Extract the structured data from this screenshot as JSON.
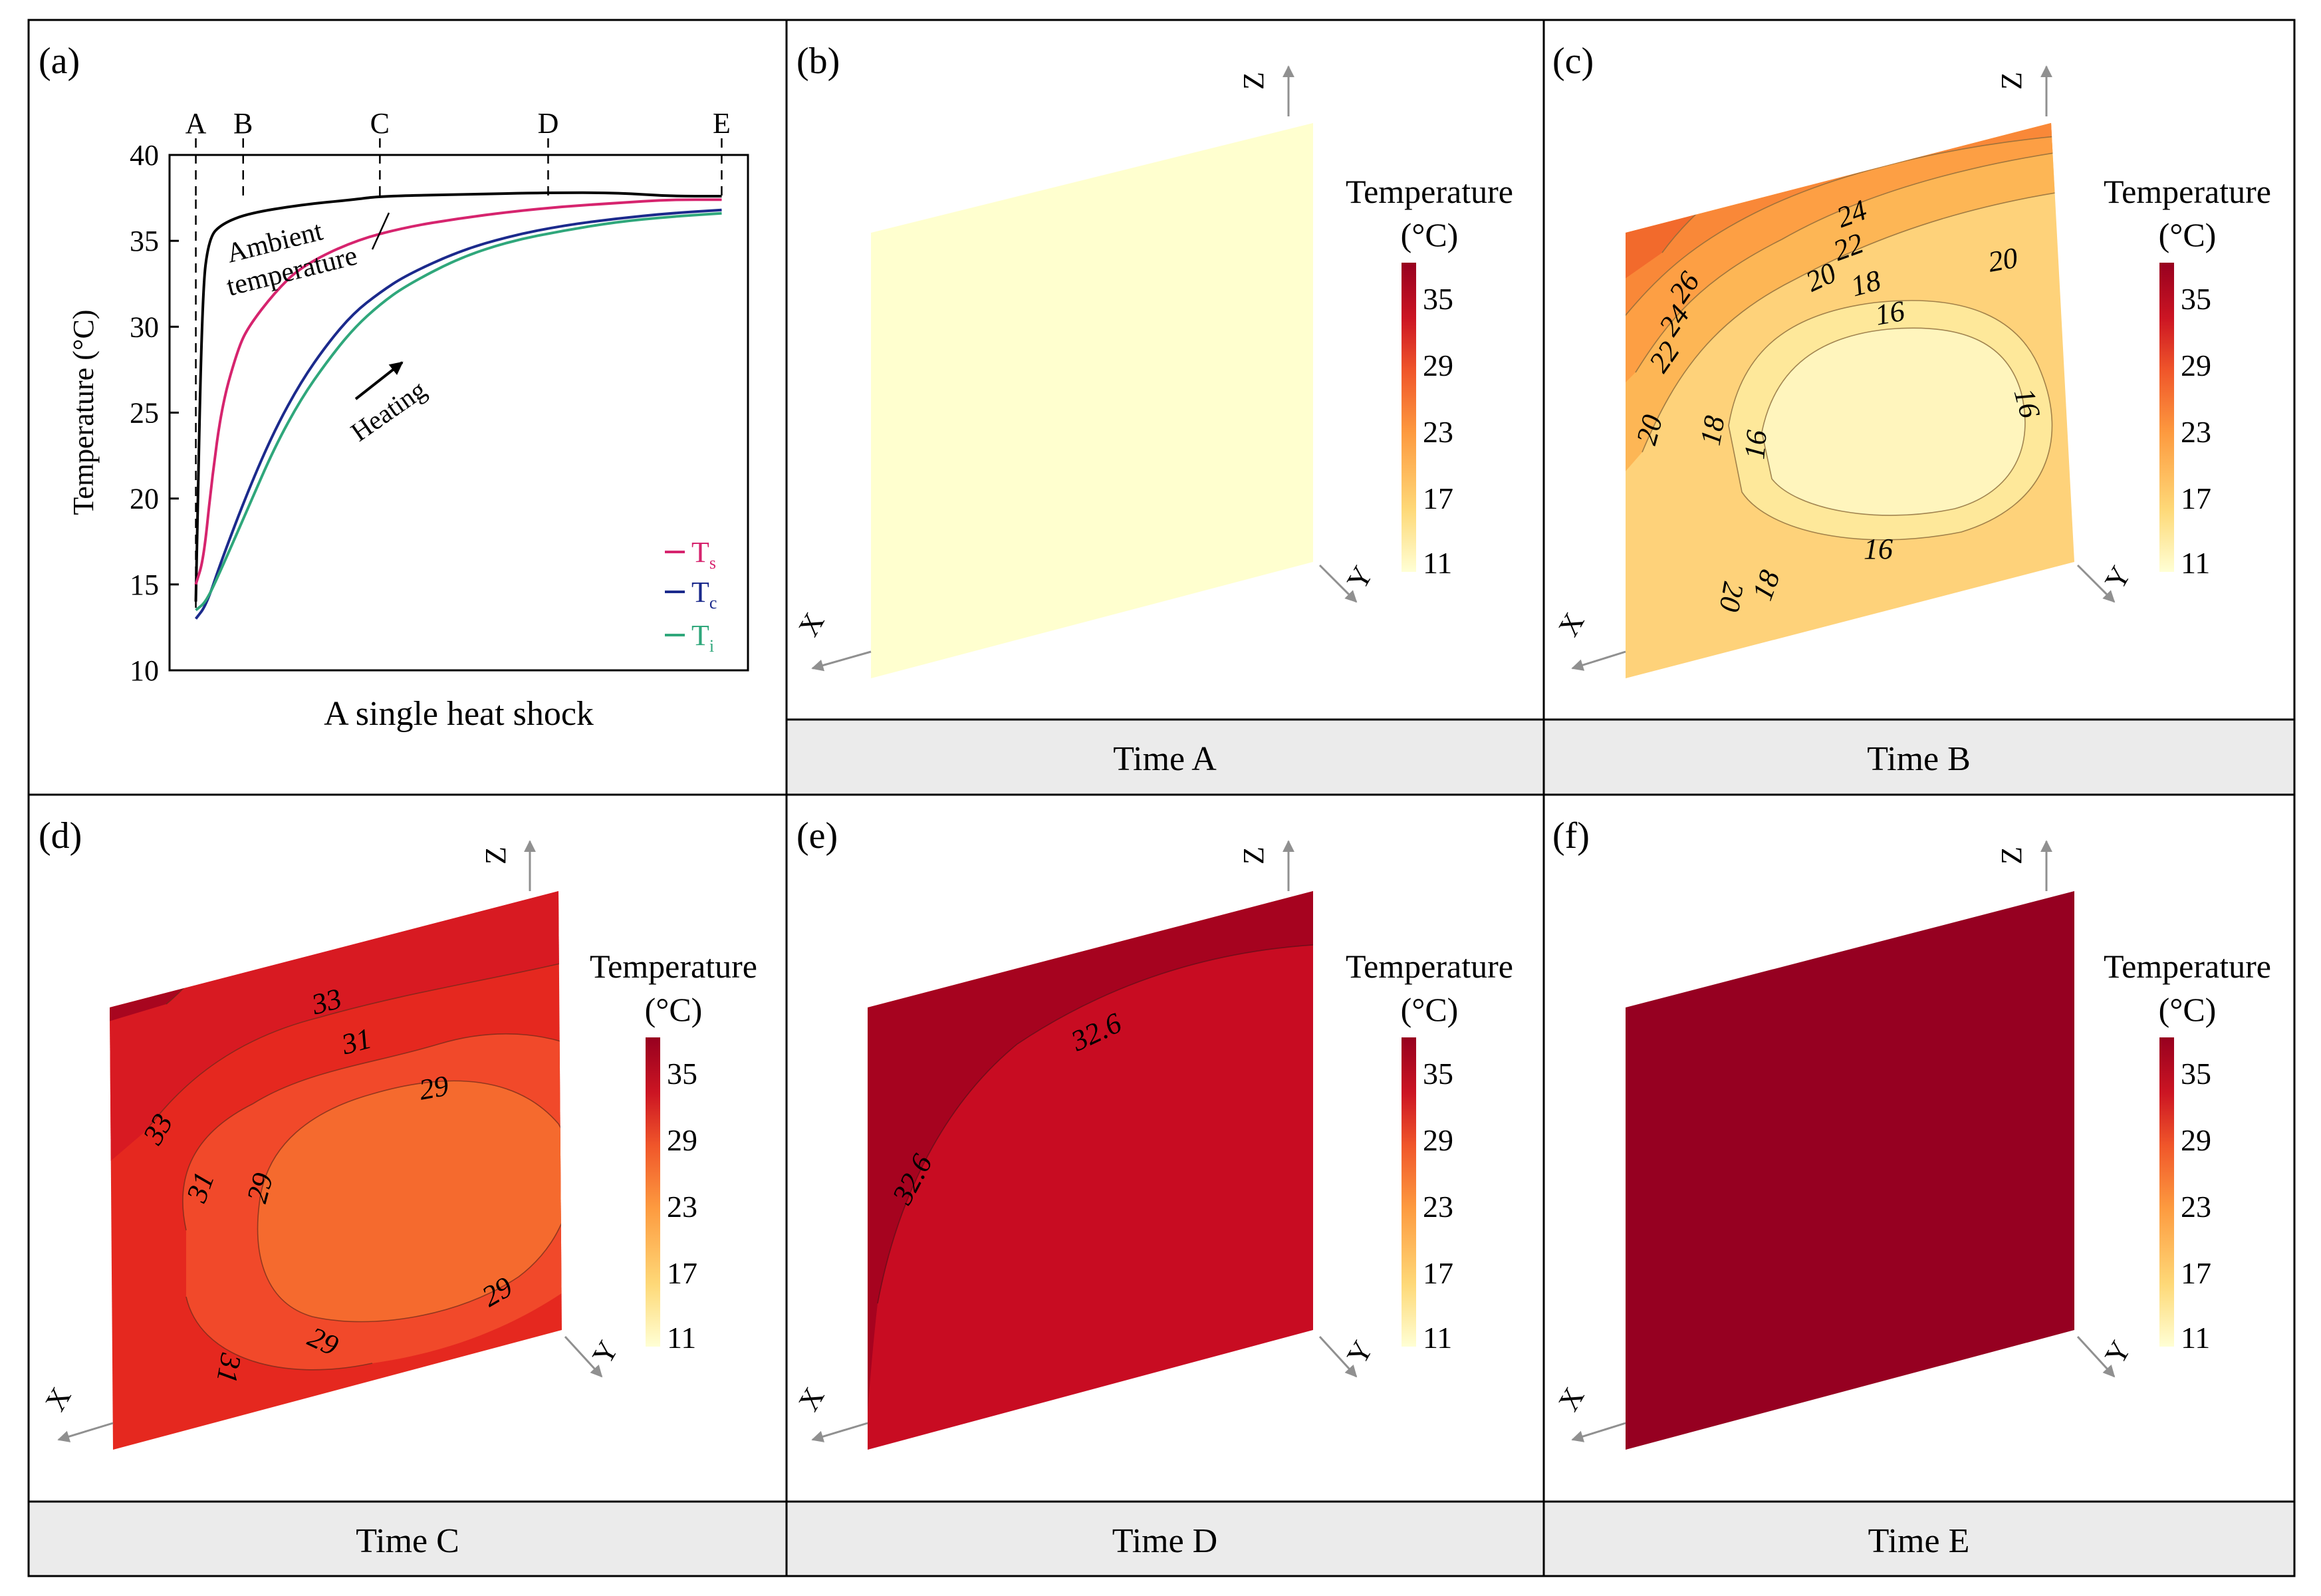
{
  "colors": {
    "ts": "#d6246e",
    "tc": "#1b2a8c",
    "ti": "#2fa77b",
    "ambient": "#000000",
    "caption_bg": "#ebebeb",
    "cmap": [
      "#ffffd4",
      "#fed978",
      "#fd9a3f",
      "#f0562a",
      "#cc1523",
      "#97001f"
    ]
  },
  "panel_a": {
    "label": "(a)",
    "time_marks": [
      "A",
      "B",
      "C",
      "D",
      "E"
    ],
    "ylabel": "Temperature (°C)",
    "caption": "A single heat shock",
    "ambient_label_1": "Ambient",
    "ambient_label_2": "temperature",
    "heating_label": "Heating",
    "legend": [
      {
        "name": "T",
        "sub": "s",
        "color_key": "ts"
      },
      {
        "name": "T",
        "sub": "c",
        "color_key": "tc"
      },
      {
        "name": "T",
        "sub": "i",
        "color_key": "ti"
      }
    ]
  },
  "chart_data": [
    {
      "type": "line",
      "title": "A single heat shock",
      "xlabel": "A single heat shock",
      "ylabel": "Temperature (°C)",
      "ylim": [
        10,
        40
      ],
      "yticks": [
        10,
        15,
        20,
        25,
        30,
        35,
        40
      ],
      "xlim": [
        -0.05,
        1.05
      ],
      "time_markers": [
        {
          "label": "A",
          "x": 0.0
        },
        {
          "label": "B",
          "x": 0.09
        },
        {
          "label": "C",
          "x": 0.35
        },
        {
          "label": "D",
          "x": 0.67
        },
        {
          "label": "E",
          "x": 1.0
        }
      ],
      "series": [
        {
          "name": "Ambient temperature",
          "color_key": "ambient",
          "x": [
            0,
            0.012,
            0.025,
            0.05,
            0.1,
            0.2,
            0.3,
            0.35,
            0.5,
            0.67,
            0.8,
            0.9,
            1.0
          ],
          "y": [
            14.0,
            32.0,
            35.2,
            36.0,
            36.6,
            37.1,
            37.4,
            37.6,
            37.7,
            37.8,
            37.8,
            37.6,
            37.6
          ]
        },
        {
          "name": "Ts",
          "color_key": "ts",
          "x": [
            0,
            0.015,
            0.03,
            0.05,
            0.08,
            0.1,
            0.15,
            0.2,
            0.3,
            0.4,
            0.5,
            0.6,
            0.7,
            0.8,
            0.9,
            1.0
          ],
          "y": [
            15.0,
            16.5,
            21.0,
            25.5,
            28.7,
            30.0,
            32.0,
            33.5,
            35.0,
            35.8,
            36.3,
            36.7,
            37.0,
            37.2,
            37.4,
            37.4
          ]
        },
        {
          "name": "Tc",
          "color_key": "tc",
          "x": [
            0,
            0.02,
            0.05,
            0.1,
            0.15,
            0.2,
            0.25,
            0.3,
            0.35,
            0.4,
            0.5,
            0.6,
            0.7,
            0.8,
            0.9,
            1.0
          ],
          "y": [
            13.0,
            13.8,
            16.5,
            20.5,
            24.0,
            26.8,
            29.0,
            30.8,
            32.0,
            33.0,
            34.4,
            35.3,
            35.9,
            36.3,
            36.6,
            36.8
          ]
        },
        {
          "name": "Ti",
          "color_key": "ti",
          "x": [
            0,
            0.02,
            0.05,
            0.1,
            0.15,
            0.2,
            0.25,
            0.3,
            0.35,
            0.4,
            0.5,
            0.6,
            0.7,
            0.8,
            0.9,
            1.0
          ],
          "y": [
            13.5,
            14.0,
            16.0,
            19.5,
            23.0,
            25.8,
            28.0,
            29.9,
            31.3,
            32.4,
            34.0,
            35.0,
            35.6,
            36.1,
            36.4,
            36.6
          ]
        }
      ]
    },
    {
      "type": "heatmap",
      "panel": "(b)",
      "caption": "Time A",
      "uniform_value": 11.5,
      "contours": []
    },
    {
      "type": "heatmap",
      "panel": "(c)",
      "caption": "Time B",
      "value_range": [
        15,
        28
      ],
      "contour_labels": [
        "26",
        "24",
        "22",
        "20",
        "18",
        "16",
        "24",
        "22",
        "20",
        "18",
        "16",
        "20",
        "16",
        "16",
        "18",
        "20"
      ]
    },
    {
      "type": "heatmap",
      "panel": "(d)",
      "caption": "Time C",
      "value_range": [
        27,
        35
      ],
      "contour_labels": [
        "33",
        "31",
        "29",
        "33",
        "31",
        "29",
        "29",
        "29",
        "31"
      ]
    },
    {
      "type": "heatmap",
      "panel": "(e)",
      "caption": "Time D",
      "value_range": [
        32,
        34
      ],
      "contour_labels": [
        "32.6",
        "32.6"
      ]
    },
    {
      "type": "heatmap",
      "panel": "(f)",
      "caption": "Time E",
      "uniform_value": 36
    }
  ],
  "colorbar": {
    "title_1": "Temperature",
    "title_2": "(°C)",
    "ticks": [
      "35",
      "29",
      "23",
      "17",
      "11"
    ]
  },
  "axes3d": {
    "x": "X",
    "y": "Y",
    "z": "Z"
  },
  "panels": [
    {
      "label": "(b)",
      "caption": "Time A"
    },
    {
      "label": "(c)",
      "caption": "Time B"
    },
    {
      "label": "(d)",
      "caption": "Time C"
    },
    {
      "label": "(e)",
      "caption": "Time D"
    },
    {
      "label": "(f)",
      "caption": "Time E"
    }
  ],
  "contours_c": [
    "26",
    "24",
    "22",
    "20",
    "18",
    "16",
    "24",
    "22",
    "20",
    "18",
    "16",
    "20",
    "16",
    "16",
    "18",
    "20"
  ],
  "contours_d": [
    "33",
    "31",
    "29",
    "33",
    "31",
    "29",
    "29",
    "29",
    "31"
  ],
  "contours_e": [
    "32.6",
    "32.6"
  ]
}
